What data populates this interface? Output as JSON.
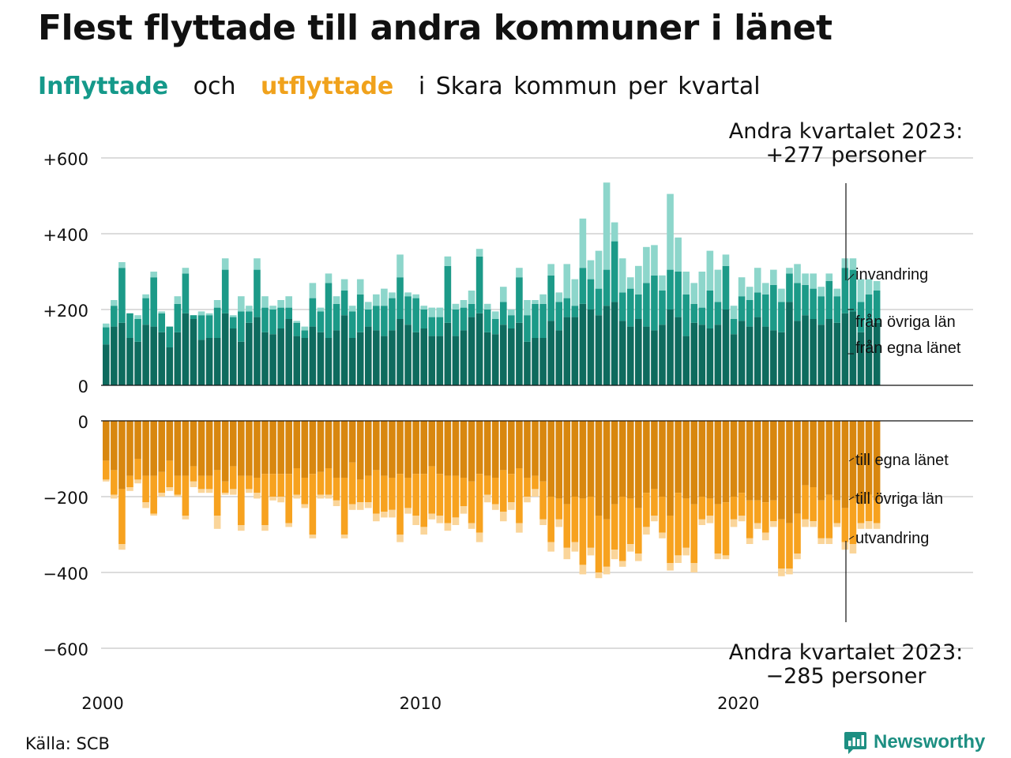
{
  "title": "Flest flyttade till andra kommuner i länet",
  "subtitle": {
    "inflyttade": "Inflyttade",
    "och": "och",
    "utflyttade": "utflyttade",
    "rest": "i Skara kommun per kvartal"
  },
  "source": "Källa: SCB",
  "brand": "Newsworthy",
  "colors": {
    "in_egna": "#0e6b5e",
    "in_ovriga": "#1c9a88",
    "in_invandring": "#8dd6cb",
    "ut_egna": "#d8870f",
    "ut_ovriga": "#f7a21f",
    "ut_utvandring": "#fad59a",
    "title_in": "#15998a",
    "title_out": "#f0a21c",
    "brand": "#1d8f82"
  },
  "chart_data": {
    "type": "bar",
    "stacked": true,
    "x_start": 2000,
    "quarters_per_year": 4,
    "xticks": [
      {
        "year": 2000,
        "label": "2000"
      },
      {
        "year": 2010,
        "label": "2010"
      },
      {
        "year": 2020,
        "label": "2020"
      }
    ],
    "ylim": [
      -600,
      600
    ],
    "yticks": [
      {
        "value": 600,
        "label": "+600"
      },
      {
        "value": 400,
        "label": "+400"
      },
      {
        "value": 200,
        "label": "+200"
      },
      {
        "value": 0,
        "label": "0"
      }
    ],
    "yticks_lower": [
      {
        "value": 0,
        "label": "0"
      },
      {
        "value": -200,
        "label": "−200"
      },
      {
        "value": -400,
        "label": "−400"
      },
      {
        "value": -600,
        "label": "−600"
      }
    ],
    "inflyttade_series": [
      {
        "name": "från egna länet",
        "values": [
          108,
          155,
          165,
          125,
          115,
          160,
          155,
          140,
          100,
          140,
          190,
          175,
          120,
          125,
          125,
          190,
          150,
          115,
          165,
          180,
          140,
          135,
          150,
          175,
          130,
          125,
          155,
          140,
          125,
          145,
          185,
          125,
          140,
          155,
          145,
          130,
          145,
          175,
          160,
          140,
          150,
          130,
          130,
          165,
          130,
          145,
          180,
          190,
          140,
          135,
          160,
          150,
          165,
          115,
          125,
          125,
          170,
          145,
          180,
          180,
          215,
          200,
          185,
          210,
          220,
          170,
          155,
          175,
          155,
          145,
          160,
          200,
          180,
          130,
          165,
          160,
          150,
          160,
          200,
          135,
          170,
          155,
          180,
          155,
          145,
          140,
          220,
          170,
          185,
          175,
          160,
          175,
          165,
          190,
          195,
          140,
          155,
          165
        ]
      },
      {
        "name": "från övriga län",
        "values": [
          45,
          55,
          145,
          65,
          60,
          70,
          130,
          50,
          55,
          75,
          105,
          10,
          65,
          60,
          80,
          115,
          30,
          80,
          30,
          125,
          65,
          65,
          55,
          30,
          35,
          20,
          75,
          55,
          145,
          70,
          65,
          70,
          100,
          45,
          65,
          80,
          85,
          110,
          75,
          90,
          50,
          50,
          50,
          150,
          70,
          60,
          35,
          150,
          60,
          40,
          60,
          35,
          120,
          70,
          90,
          90,
          120,
          75,
          50,
          30,
          95,
          80,
          70,
          95,
          160,
          75,
          100,
          65,
          115,
          145,
          90,
          105,
          120,
          110,
          50,
          45,
          100,
          60,
          115,
          40,
          65,
          70,
          65,
          85,
          120,
          80,
          75,
          100,
          80,
          80,
          75,
          100,
          70,
          120,
          110,
          80,
          85,
          85
        ]
      },
      {
        "name": "invandring",
        "values": [
          10,
          15,
          15,
          0,
          10,
          10,
          15,
          5,
          0,
          20,
          15,
          0,
          10,
          5,
          20,
          30,
          5,
          40,
          15,
          30,
          30,
          10,
          20,
          30,
          5,
          10,
          40,
          10,
          25,
          20,
          30,
          15,
          40,
          20,
          30,
          45,
          15,
          60,
          10,
          10,
          10,
          25,
          25,
          25,
          15,
          20,
          35,
          20,
          15,
          20,
          40,
          15,
          25,
          40,
          10,
          25,
          30,
          25,
          90,
          70,
          130,
          50,
          100,
          230,
          50,
          90,
          30,
          75,
          95,
          80,
          40,
          200,
          90,
          60,
          55,
          95,
          105,
          85,
          30,
          35,
          50,
          35,
          65,
          30,
          40,
          35,
          15,
          50,
          30,
          40,
          25,
          20,
          20,
          25,
          30,
          60,
          40,
          25
        ]
      }
    ],
    "utflyttade_series": [
      {
        "name": "till egna länet",
        "values": [
          -105,
          -130,
          -180,
          -145,
          -100,
          -145,
          -145,
          -135,
          -105,
          -145,
          -145,
          -120,
          -145,
          -145,
          -130,
          -160,
          -120,
          -145,
          -145,
          -150,
          -140,
          -140,
          -140,
          -140,
          -125,
          -150,
          -140,
          -135,
          -125,
          -150,
          -150,
          -110,
          -155,
          -145,
          -130,
          -145,
          -150,
          -140,
          -150,
          -140,
          -140,
          -120,
          -140,
          -145,
          -145,
          -150,
          -160,
          -140,
          -145,
          -150,
          -130,
          -140,
          -125,
          -150,
          -145,
          -160,
          -200,
          -205,
          -220,
          -200,
          -205,
          -200,
          -250,
          -260,
          -220,
          -200,
          -205,
          -230,
          -190,
          -180,
          -200,
          -250,
          -190,
          -205,
          -220,
          -200,
          -205,
          -220,
          -215,
          -200,
          -190,
          -210,
          -210,
          -215,
          -210,
          -260,
          -270,
          -245,
          -170,
          -175,
          -210,
          -195,
          -210,
          -230,
          -205,
          -220,
          -195,
          -210
        ]
      },
      {
        "name": "till övriga län",
        "values": [
          -50,
          -65,
          -145,
          -30,
          -55,
          -70,
          -100,
          -55,
          -70,
          -50,
          -105,
          -40,
          -35,
          -35,
          -120,
          -30,
          -60,
          -130,
          -35,
          -40,
          -135,
          -60,
          -60,
          -130,
          -70,
          -70,
          -160,
          -60,
          -70,
          -60,
          -150,
          -110,
          -60,
          -70,
          -115,
          -95,
          -85,
          -160,
          -80,
          -110,
          -140,
          -125,
          -110,
          -125,
          -110,
          -75,
          -110,
          -155,
          -50,
          -70,
          -110,
          -75,
          -145,
          -50,
          -35,
          -100,
          -120,
          -55,
          -115,
          -120,
          -175,
          -135,
          -150,
          -125,
          -120,
          -170,
          -120,
          -120,
          -90,
          -70,
          -95,
          -125,
          -165,
          -130,
          -155,
          -60,
          -45,
          -130,
          -140,
          -60,
          -60,
          -100,
          -60,
          -80,
          -55,
          -130,
          -120,
          -105,
          -90,
          -90,
          -100,
          -115,
          -60,
          -90,
          -120,
          -50,
          -70,
          -60
        ]
      },
      {
        "name": "utvandring",
        "values": [
          -5,
          -10,
          -15,
          -10,
          -10,
          -15,
          -5,
          -10,
          -10,
          -5,
          -10,
          -15,
          -10,
          -10,
          -35,
          -5,
          -15,
          -15,
          -10,
          -15,
          -15,
          -10,
          -15,
          -10,
          -10,
          -10,
          -10,
          -10,
          -10,
          -15,
          -10,
          -15,
          -20,
          -15,
          -20,
          -15,
          -20,
          -20,
          -15,
          -25,
          -20,
          -15,
          -20,
          -20,
          -20,
          -20,
          -15,
          -25,
          -20,
          -15,
          -25,
          -20,
          -25,
          -15,
          -20,
          -15,
          -25,
          -20,
          -30,
          -25,
          -25,
          -20,
          -15,
          -20,
          -25,
          -15,
          -20,
          -20,
          -20,
          -15,
          -15,
          -20,
          -20,
          -20,
          -25,
          -15,
          -20,
          -15,
          -10,
          -20,
          -15,
          -15,
          -15,
          -20,
          -15,
          -20,
          -15,
          -15,
          -20,
          -15,
          -15,
          -15,
          -10,
          -20,
          -25,
          -15,
          -20,
          -15
        ]
      }
    ],
    "right_labels_in": [
      "invandring",
      "från övriga län",
      "från egna länet"
    ],
    "right_labels_out": [
      "till egna länet",
      "till övriga län",
      "utvandring"
    ],
    "annotation_top": [
      "Andra kvartalet 2023:",
      "+277 personer"
    ],
    "annotation_bottom": [
      "Andra kvartalet 2023:",
      "−285 personer"
    ]
  }
}
